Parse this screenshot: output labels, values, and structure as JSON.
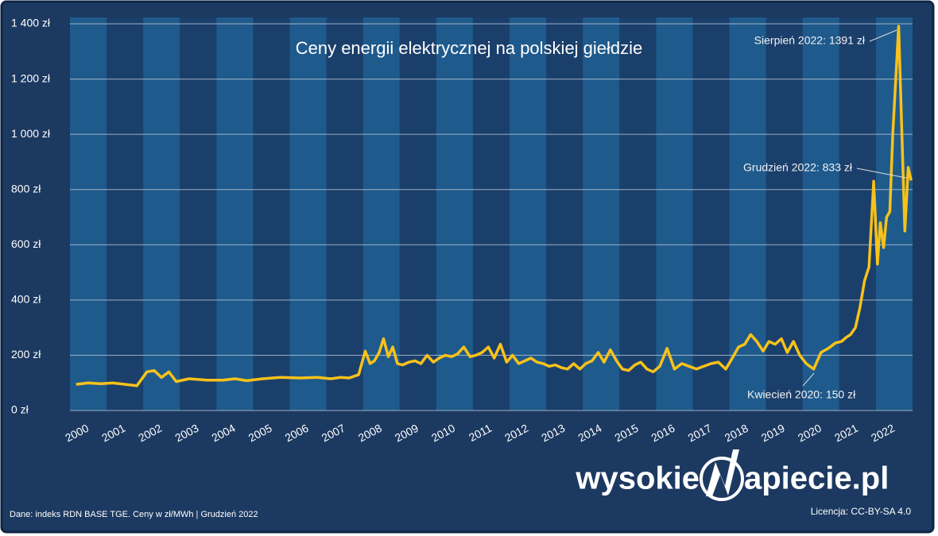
{
  "chart_data": {
    "type": "line",
    "title": "Ceny energii elektrycznej na polskiej giełdzie",
    "color": "#f7c21a",
    "x": [
      2000.17,
      2000.5,
      2000.83,
      2001.17,
      2001.5,
      2001.83,
      2002.1,
      2002.3,
      2002.5,
      2002.7,
      2002.9,
      2003.25,
      2003.75,
      2004.17,
      2004.5,
      2004.83,
      2005.25,
      2005.75,
      2006.25,
      2006.75,
      2007.12,
      2007.38,
      2007.62,
      2007.88,
      2008.06,
      2008.19,
      2008.31,
      2008.44,
      2008.56,
      2008.69,
      2008.81,
      2008.94,
      2009.08,
      2009.25,
      2009.42,
      2009.58,
      2009.75,
      2009.92,
      2010.08,
      2010.25,
      2010.42,
      2010.58,
      2010.75,
      2010.92,
      2011.08,
      2011.25,
      2011.42,
      2011.58,
      2011.75,
      2011.92,
      2012.08,
      2012.25,
      2012.42,
      2012.58,
      2012.75,
      2012.92,
      2013.08,
      2013.25,
      2013.42,
      2013.58,
      2013.75,
      2013.92,
      2014.08,
      2014.25,
      2014.42,
      2014.58,
      2014.75,
      2014.92,
      2015.08,
      2015.25,
      2015.42,
      2015.58,
      2015.75,
      2015.92,
      2016.1,
      2016.3,
      2016.5,
      2016.7,
      2016.9,
      2017.1,
      2017.3,
      2017.5,
      2017.7,
      2017.9,
      2018.08,
      2018.25,
      2018.42,
      2018.58,
      2018.75,
      2018.92,
      2019.08,
      2019.25,
      2019.42,
      2019.58,
      2019.75,
      2019.92,
      2020.1,
      2020.3,
      2020.5,
      2020.7,
      2020.9,
      2021.06,
      2021.19,
      2021.31,
      2021.44,
      2021.56,
      2021.69,
      2021.81,
      2021.94,
      2022.04,
      2022.12,
      2022.21,
      2022.29,
      2022.38,
      2022.46,
      2022.62,
      2022.71,
      2022.79,
      2022.88,
      2022.96
    ],
    "values": [
      95,
      100,
      97,
      100,
      95,
      90,
      140,
      145,
      120,
      140,
      105,
      115,
      110,
      110,
      115,
      108,
      115,
      120,
      118,
      120,
      115,
      120,
      118,
      130,
      215,
      170,
      180,
      210,
      260,
      195,
      230,
      170,
      165,
      175,
      180,
      170,
      200,
      175,
      190,
      200,
      195,
      205,
      230,
      195,
      200,
      210,
      230,
      190,
      240,
      175,
      200,
      170,
      180,
      190,
      175,
      170,
      160,
      165,
      155,
      150,
      170,
      150,
      170,
      180,
      210,
      175,
      220,
      180,
      150,
      145,
      165,
      175,
      150,
      140,
      160,
      225,
      150,
      170,
      160,
      150,
      160,
      170,
      175,
      150,
      190,
      230,
      240,
      275,
      250,
      215,
      250,
      240,
      260,
      210,
      250,
      200,
      170,
      150,
      210,
      225,
      245,
      250,
      265,
      275,
      300,
      370,
      470,
      520,
      830,
      530,
      680,
      590,
      700,
      720,
      1000,
      1391,
      1000,
      650,
      880,
      833
    ],
    "xlim": [
      2000,
      2023
    ],
    "xticks": [
      2000,
      2001,
      2002,
      2003,
      2004,
      2005,
      2006,
      2007,
      2008,
      2009,
      2010,
      2011,
      2012,
      2013,
      2014,
      2015,
      2016,
      2017,
      2018,
      2019,
      2020,
      2021,
      2022
    ],
    "ylim": [
      0,
      1400
    ],
    "yticks": [
      {
        "value": 0,
        "label": "0 zł"
      },
      {
        "value": 200,
        "label": "200 zł"
      },
      {
        "value": 400,
        "label": "400 zł"
      },
      {
        "value": 600,
        "label": "600 zł"
      },
      {
        "value": 800,
        "label": "800 zł"
      },
      {
        "value": 1000,
        "label": "1 000 zł"
      },
      {
        "value": 1200,
        "label": "1 200 zł"
      },
      {
        "value": 1400,
        "label": "1 400 zł"
      }
    ],
    "grid": true,
    "annotations": [
      "Sierpień 2022: 1391 zł",
      "Grudzień 2022: 833 zł",
      "Kwiecień 2020: 150 zł"
    ],
    "source": "Dane: indeks RDN BASE TGE. Ceny w zł/MWh  | Grudzień  2022",
    "license": "Licencja: CC-BY-SA 4.0",
    "logo_left": "wysokie",
    "logo_right": "apiecie.pl"
  }
}
